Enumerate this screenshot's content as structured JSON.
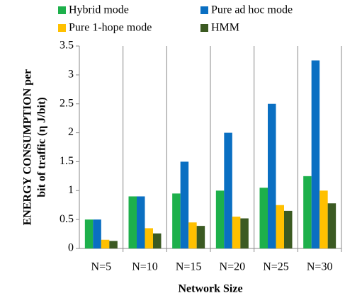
{
  "chart_data": {
    "type": "bar",
    "categories": [
      "N=5",
      "N=10",
      "N=15",
      "N=20",
      "N=25",
      "N=30"
    ],
    "series": [
      {
        "name": "Hybrid mode",
        "color": "#1db04b",
        "values": [
          0.5,
          0.9,
          0.95,
          1.0,
          1.05,
          1.25
        ]
      },
      {
        "name": "Pure ad hoc mode",
        "color": "#0a6fc2",
        "values": [
          0.5,
          0.9,
          1.5,
          2.0,
          2.5,
          3.25
        ]
      },
      {
        "name": "Pure 1-hope mode",
        "color": "#ffc000",
        "values": [
          0.15,
          0.35,
          0.45,
          0.55,
          0.75,
          1.0
        ]
      },
      {
        "name": "HMM",
        "color": "#3b5a22",
        "values": [
          0.13,
          0.26,
          0.39,
          0.52,
          0.65,
          0.78
        ]
      }
    ],
    "xlabel": "Network Size",
    "ylabel": [
      "ENERGY CONSUMPTION per",
      "bit of traffic (η J/bit)"
    ],
    "ylim": [
      0,
      3.5
    ],
    "yticks": [
      0,
      0.5,
      1,
      1.5,
      2,
      2.5,
      3,
      3.5
    ],
    "grid": false,
    "legend": "top"
  }
}
